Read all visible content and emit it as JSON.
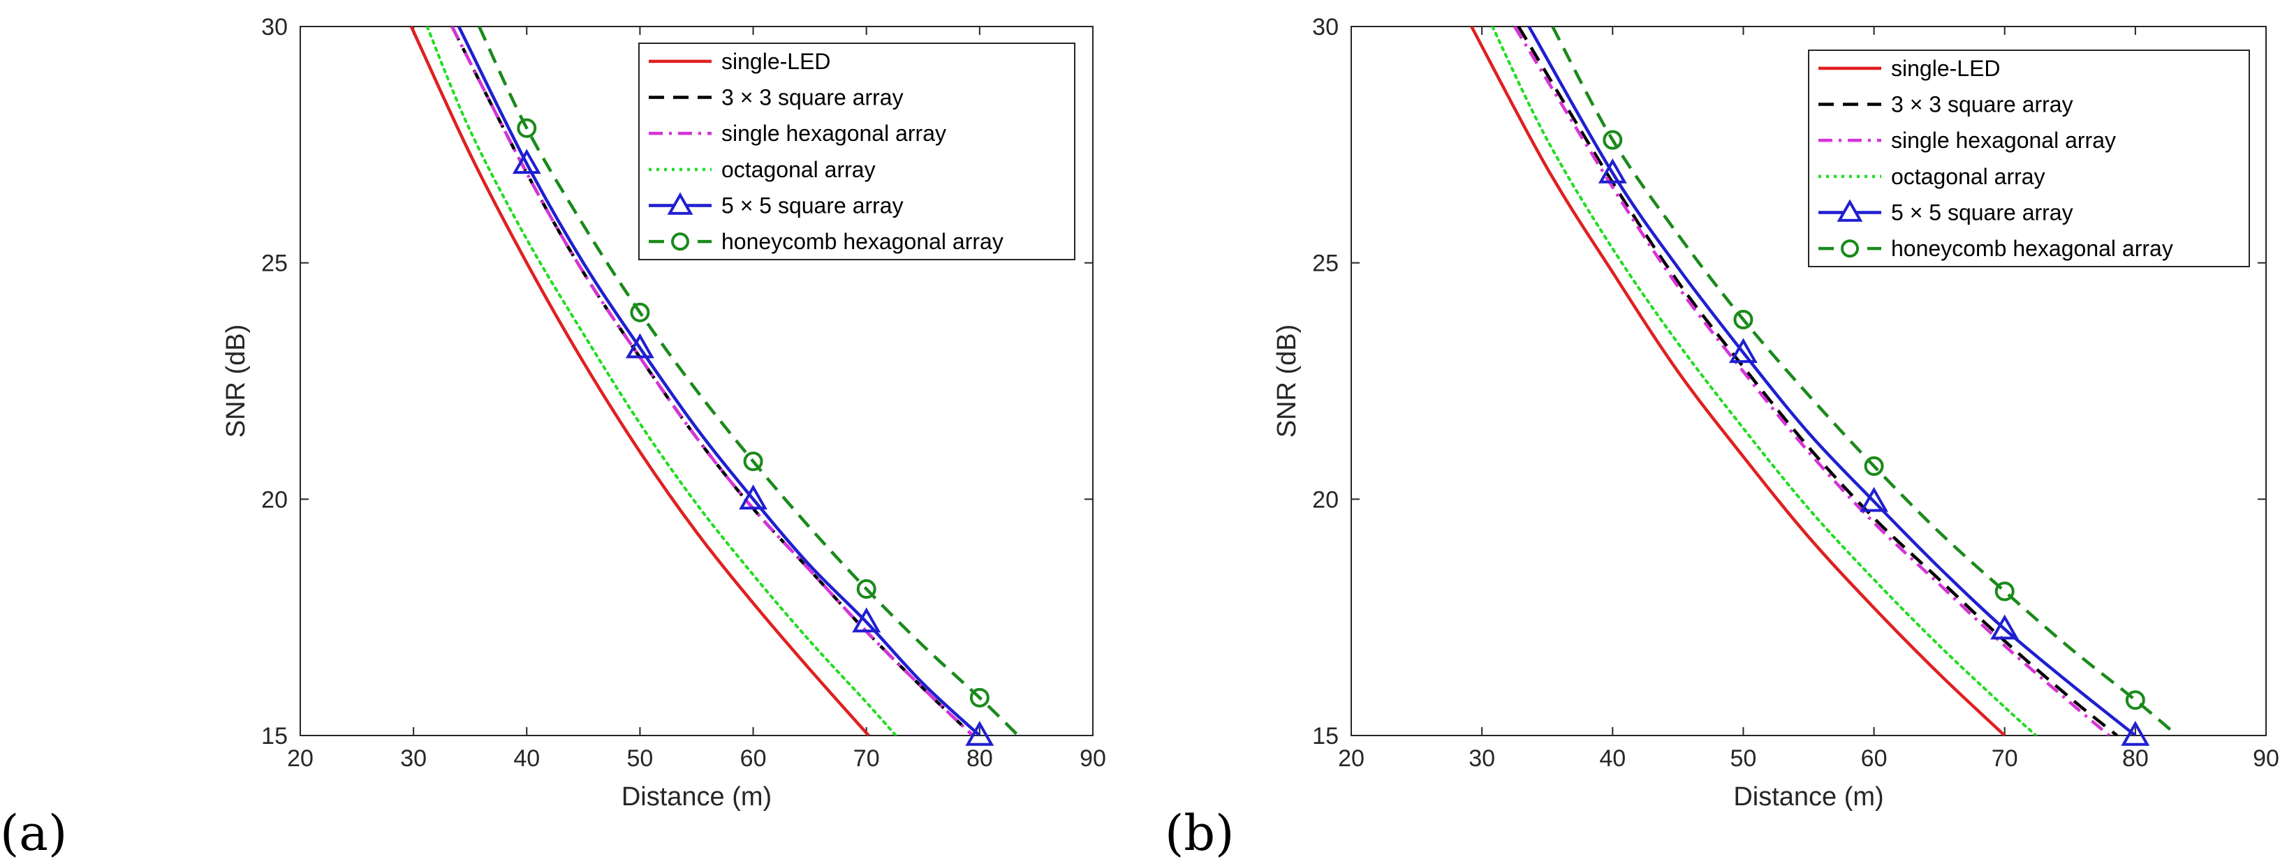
{
  "chart_data": [
    {
      "type": "line",
      "panel_label": "(a)",
      "xlabel": "Distance (m)",
      "ylabel": "SNR (dB)",
      "xlim": [
        20,
        90
      ],
      "ylim": [
        15,
        30
      ],
      "xticks": [
        20,
        30,
        40,
        50,
        60,
        70,
        80,
        90
      ],
      "yticks": [
        15,
        20,
        25,
        30
      ],
      "legend_position": "top-right",
      "series": [
        {
          "name": "single-LED",
          "color": "#e02020",
          "style": "solid",
          "marker": "none",
          "x": [
            29.8,
            35,
            40,
            45,
            50,
            55,
            60,
            65,
            70.2
          ],
          "y": [
            30.0,
            27.3,
            25.0,
            22.9,
            21.0,
            19.3,
            17.8,
            16.4,
            15.0
          ]
        },
        {
          "name": "3 × 3 square array",
          "color": "#000000",
          "style": "dashed",
          "marker": "none",
          "x": [
            33.4,
            40,
            45,
            50,
            55,
            60,
            65,
            70,
            75,
            79.4
          ],
          "y": [
            30.0,
            26.9,
            24.8,
            23.0,
            21.3,
            19.8,
            18.5,
            17.2,
            16.0,
            15.0
          ]
        },
        {
          "name": "single hexagonal array",
          "color": "#d633d6",
          "style": "dashdot",
          "marker": "none",
          "x": [
            33.4,
            40,
            45,
            50,
            55,
            60,
            65,
            70,
            75,
            79.4
          ],
          "y": [
            30.0,
            26.9,
            24.8,
            23.0,
            21.3,
            19.8,
            18.5,
            17.2,
            16.0,
            15.0
          ]
        },
        {
          "name": "octagonal array",
          "color": "#22dd22",
          "style": "dotted",
          "marker": "none",
          "x": [
            31.2,
            35,
            40,
            45,
            50,
            55,
            60,
            65,
            70,
            72.6
          ],
          "y": [
            30.0,
            27.8,
            25.5,
            23.5,
            21.6,
            19.9,
            18.4,
            17.0,
            15.7,
            15.0
          ]
        },
        {
          "name": "5 × 5 square array",
          "color": "#1f1fd0",
          "style": "solid",
          "marker": "triangle",
          "x": [
            34.0,
            40,
            45,
            50,
            55,
            60,
            65,
            70,
            75,
            80
          ],
          "y": [
            30.0,
            27.1,
            25.0,
            23.2,
            21.5,
            20.0,
            18.6,
            17.4,
            16.1,
            15.0
          ],
          "marker_x": [
            40,
            50,
            60,
            70,
            80
          ]
        },
        {
          "name": "honeycomb hexagonal array",
          "color": "#1a8a1a",
          "style": "dashed",
          "marker": "circle",
          "x": [
            35.8,
            40,
            45,
            50,
            55,
            60,
            65,
            70,
            75,
            80,
            83.4
          ],
          "y": [
            30.0,
            27.85,
            25.8,
            23.95,
            22.3,
            20.8,
            19.4,
            18.1,
            16.9,
            15.8,
            15.0
          ],
          "marker_x": [
            40,
            50,
            60,
            70,
            80
          ]
        }
      ]
    },
    {
      "type": "line",
      "panel_label": "(b)",
      "xlabel": "Distance (m)",
      "ylabel": "SNR (dB)",
      "xlim": [
        20,
        90
      ],
      "ylim": [
        15,
        30
      ],
      "xticks": [
        20,
        30,
        40,
        50,
        60,
        70,
        80,
        90
      ],
      "yticks": [
        15,
        20,
        25,
        30
      ],
      "legend_position": "top-right",
      "series": [
        {
          "name": "single-LED",
          "color": "#e02020",
          "style": "solid",
          "marker": "none",
          "x": [
            29.2,
            35,
            40,
            45,
            50,
            55,
            60,
            65,
            70
          ],
          "y": [
            30.0,
            27.0,
            24.8,
            22.7,
            20.9,
            19.2,
            17.7,
            16.3,
            15.0
          ]
        },
        {
          "name": "3 × 3 square array",
          "color": "#000000",
          "style": "dashed",
          "marker": "none",
          "x": [
            32.8,
            40,
            45,
            50,
            55,
            60,
            65,
            70,
            75,
            78.6
          ],
          "y": [
            30.0,
            26.7,
            24.6,
            22.8,
            21.1,
            19.6,
            18.3,
            17.0,
            15.8,
            15.0
          ]
        },
        {
          "name": "single hexagonal array",
          "color": "#d633d6",
          "style": "dashdot",
          "marker": "none",
          "x": [
            32.5,
            40,
            45,
            50,
            55,
            60,
            65,
            70,
            75,
            78.0
          ],
          "y": [
            30.0,
            26.6,
            24.5,
            22.7,
            21.0,
            19.5,
            18.2,
            16.9,
            15.7,
            15.0
          ]
        },
        {
          "name": "octagonal array",
          "color": "#22dd22",
          "style": "dotted",
          "marker": "none",
          "x": [
            30.8,
            35,
            40,
            45,
            50,
            55,
            60,
            65,
            70,
            72.4
          ],
          "y": [
            30.0,
            27.6,
            25.3,
            23.3,
            21.5,
            19.8,
            18.3,
            16.9,
            15.6,
            15.0
          ]
        },
        {
          "name": "5 × 5 square array",
          "color": "#1f1fd0",
          "style": "solid",
          "marker": "triangle",
          "x": [
            33.6,
            40,
            45,
            50,
            55,
            60,
            65,
            70,
            75,
            80
          ],
          "y": [
            30.0,
            26.9,
            24.9,
            23.1,
            21.4,
            19.95,
            18.55,
            17.25,
            16.1,
            15.0
          ],
          "marker_x": [
            40,
            50,
            60,
            70,
            80
          ]
        },
        {
          "name": "honeycomb hexagonal array",
          "color": "#1a8a1a",
          "style": "dashed",
          "marker": "circle",
          "x": [
            35.4,
            40,
            45,
            50,
            55,
            60,
            65,
            70,
            75,
            80,
            83.2
          ],
          "y": [
            30.0,
            27.6,
            25.6,
            23.8,
            22.2,
            20.7,
            19.3,
            18.05,
            16.85,
            15.75,
            15.0
          ],
          "marker_x": [
            40,
            50,
            60,
            70,
            80
          ]
        }
      ]
    }
  ]
}
